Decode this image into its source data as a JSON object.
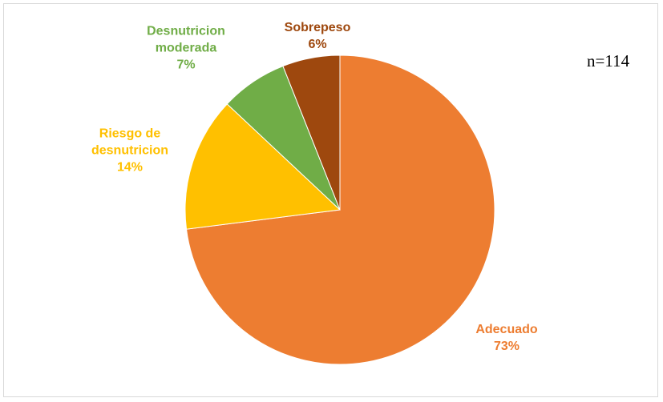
{
  "chart_data": {
    "type": "pie",
    "categories": [
      "Adecuado",
      "Riesgo de desnutricion",
      "Desnutricion moderada",
      "Sobrepeso"
    ],
    "values": [
      73,
      14,
      7,
      6
    ],
    "value_labels": [
      "73%",
      "14%",
      "7%",
      "6%"
    ],
    "colors": [
      "#ED7D31",
      "#FFC000",
      "#70AD47",
      "#9E480E"
    ],
    "annotation": "n=114"
  }
}
